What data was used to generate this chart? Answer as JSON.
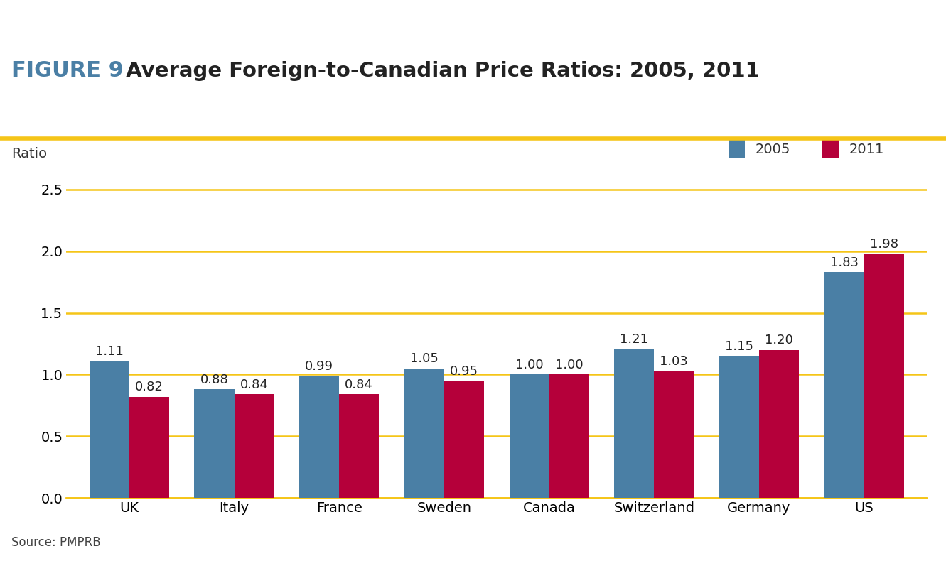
{
  "title_figure": "FIGURE 9",
  "title_main": "  Average Foreign-to-Canadian Price Ratios: 2005, 2011",
  "ylabel": "Ratio",
  "source": "Source: PMPRB",
  "categories": [
    "UK",
    "Italy",
    "France",
    "Sweden",
    "Canada",
    "Switzerland",
    "Germany",
    "US"
  ],
  "values_2005": [
    1.11,
    0.88,
    0.99,
    1.05,
    1.0,
    1.21,
    1.15,
    1.83
  ],
  "values_2011": [
    0.82,
    0.84,
    0.84,
    0.95,
    1.0,
    1.03,
    1.2,
    1.98
  ],
  "color_2005": "#4a7fa5",
  "color_2011": "#b5003a",
  "ylim": [
    0,
    2.75
  ],
  "yticks": [
    0.0,
    0.5,
    1.0,
    1.5,
    2.0,
    2.5
  ],
  "bar_width": 0.38,
  "grid_color": "#f5c518",
  "title_figure_color": "#4a7fa5",
  "title_main_color": "#222222",
  "legend_2005": "2005",
  "legend_2011": "2011",
  "background_color": "#ffffff",
  "title_line_color": "#f5c518",
  "figure_fontsize": 22,
  "main_fontsize": 21,
  "label_fontsize": 14,
  "tick_fontsize": 14,
  "annotation_fontsize": 13
}
